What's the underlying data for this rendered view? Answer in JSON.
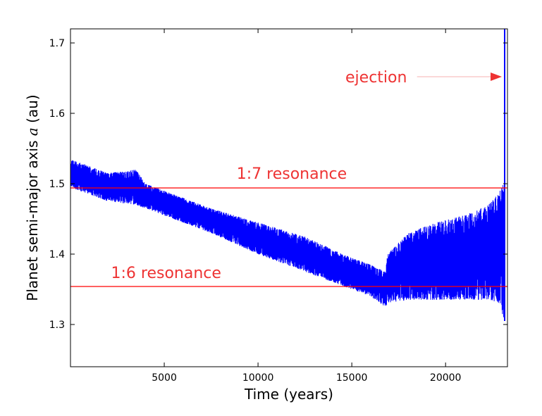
{
  "chart_data": {
    "type": "line",
    "title": "",
    "xlabel": "Time (years)",
    "ylabel_prefix": "Planet semi-major axis ",
    "ylabel_symbol": "a",
    "ylabel_suffix": " (au)",
    "xlim": [
      0,
      23300
    ],
    "ylim": [
      1.24,
      1.72
    ],
    "x_ticks": [
      5000,
      10000,
      15000,
      20000
    ],
    "x_tick_labels": [
      "5000",
      "10000",
      "15000",
      "20000"
    ],
    "y_ticks": [
      1.3,
      1.4,
      1.5,
      1.6,
      1.7
    ],
    "y_tick_labels": [
      "1.3",
      "1.4",
      "1.5",
      "1.6",
      "1.7"
    ],
    "grid": false,
    "series": [
      {
        "color": "#0000ff",
        "envelope": {
          "x": [
            0,
            2000,
            3500,
            4000,
            5000,
            7500,
            10000,
            12500,
            14500,
            16000,
            16800,
            16900,
            18000,
            19500,
            21000,
            22300,
            22900,
            23100
          ],
          "upper": [
            1.535,
            1.515,
            1.52,
            1.5,
            1.49,
            1.465,
            1.445,
            1.425,
            1.4,
            1.385,
            1.375,
            1.4,
            1.43,
            1.445,
            1.455,
            1.47,
            1.49,
            1.5
          ],
          "lower": [
            1.495,
            1.475,
            1.47,
            1.465,
            1.455,
            1.43,
            1.4,
            1.375,
            1.355,
            1.34,
            1.325,
            1.33,
            1.335,
            1.335,
            1.335,
            1.335,
            1.33,
            1.305
          ]
        },
        "ejection_x": 23150,
        "ejection_y_min": 1.305,
        "ejection_y_max": 1.72
      }
    ],
    "resonances": [
      {
        "label": "1:7 resonance",
        "y": 1.494,
        "label_x": 11800,
        "label_y": 1.507,
        "color": "#ff0000",
        "label_color": "#ee3333"
      },
      {
        "label": "1:6 resonance",
        "y": 1.354,
        "label_x": 5100,
        "label_y": 1.366,
        "color": "#ff0000",
        "label_color": "#ee3333"
      }
    ],
    "annotations": [
      {
        "text": "ejection",
        "text_x": 16300,
        "text_y": 1.65,
        "arrow_to_x": 23000,
        "arrow_y": 1.652,
        "color": "#ee3333"
      }
    ]
  }
}
